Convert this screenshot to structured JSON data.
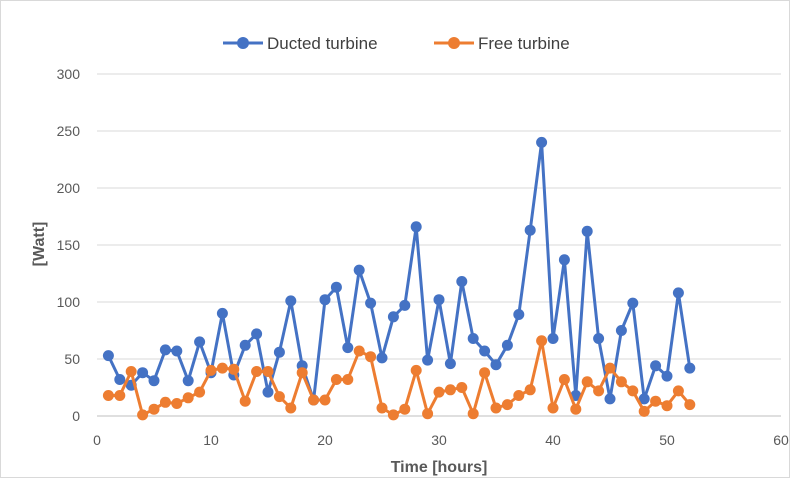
{
  "chart_data": {
    "type": "line",
    "xlabel": "Time [hours]",
    "ylabel": "[Watt]",
    "xlim": [
      0,
      60
    ],
    "ylim": [
      0,
      300
    ],
    "xticks": [
      "0",
      "10",
      "20",
      "30",
      "40",
      "50",
      "60"
    ],
    "yticks": [
      "0",
      "50",
      "100",
      "150",
      "200",
      "250",
      "300"
    ],
    "grid": "horizontal",
    "legend_position": "top",
    "x": [
      1,
      2,
      3,
      4,
      5,
      6,
      7,
      8,
      9,
      10,
      11,
      12,
      13,
      14,
      15,
      16,
      17,
      18,
      19,
      20,
      21,
      22,
      23,
      24,
      25,
      26,
      27,
      28,
      29,
      30,
      31,
      32,
      33,
      34,
      35,
      36,
      37,
      38,
      39,
      40,
      41,
      42,
      43,
      44,
      45,
      46,
      47,
      48,
      49,
      50,
      51,
      52
    ],
    "series": [
      {
        "name": "Ducted turbine",
        "color": "#4472c4",
        "values": [
          53,
          32,
          27,
          38,
          31,
          58,
          57,
          31,
          65,
          38,
          90,
          36,
          62,
          72,
          21,
          56,
          101,
          44,
          14,
          102,
          113,
          60,
          128,
          99,
          51,
          87,
          97,
          166,
          49,
          102,
          46,
          118,
          68,
          57,
          45,
          62,
          89,
          163,
          240,
          68,
          137,
          18,
          162,
          68,
          15,
          75,
          99,
          15,
          44,
          35,
          108,
          42
        ]
      },
      {
        "name": "Free turbine",
        "color": "#ed7d31",
        "values": [
          18,
          18,
          39,
          1,
          6,
          12,
          11,
          16,
          21,
          40,
          42,
          41,
          13,
          39,
          39,
          17,
          7,
          38,
          14,
          14,
          32,
          32,
          57,
          52,
          7,
          1,
          6,
          40,
          2,
          21,
          23,
          25,
          2,
          38,
          7,
          10,
          18,
          23,
          66,
          7,
          32,
          6,
          30,
          22,
          42,
          30,
          22,
          4,
          13,
          9,
          22,
          10
        ]
      }
    ]
  }
}
